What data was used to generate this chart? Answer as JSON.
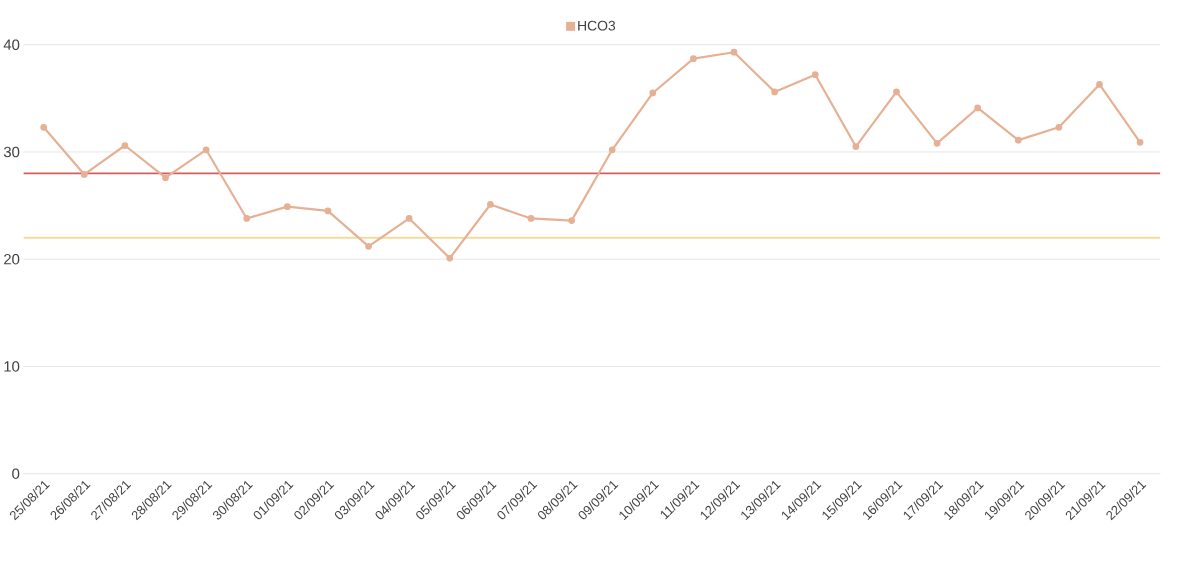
{
  "chart_data": {
    "type": "line",
    "categories": [
      "25/08/21",
      "26/08/21",
      "27/08/21",
      "28/08/21",
      "29/08/21",
      "30/08/21",
      "01/09/21",
      "02/09/21",
      "03/09/21",
      "04/09/21",
      "05/09/21",
      "06/09/21",
      "07/09/21",
      "08/09/21",
      "09/09/21",
      "10/09/21",
      "11/09/21",
      "12/09/21",
      "13/09/21",
      "14/09/21",
      "15/09/21",
      "16/09/21",
      "17/09/21",
      "18/09/21",
      "19/09/21",
      "20/09/21",
      "21/09/21",
      "22/09/21"
    ],
    "series": [
      {
        "name": "HCO3",
        "color": "#e6b094",
        "values": [
          32.3,
          27.9,
          30.6,
          27.6,
          30.2,
          23.8,
          24.9,
          24.5,
          21.2,
          23.8,
          20.1,
          25.1,
          23.8,
          23.6,
          30.2,
          35.5,
          38.7,
          39.3,
          35.6,
          37.2,
          30.5,
          35.6,
          30.8,
          34.1,
          31.1,
          32.3,
          36.3,
          30.9
        ]
      }
    ],
    "ylim": [
      0,
      40
    ],
    "yticks": [
      0,
      10,
      20,
      30,
      40
    ],
    "ref_lines": [
      {
        "axis": "y",
        "value": 28,
        "color": "#d0605e"
      },
      {
        "axis": "y",
        "value": 22,
        "color": "#f0dc98"
      }
    ],
    "grid": "y",
    "legend": "top",
    "marker": "circle",
    "line_style": "solid"
  }
}
